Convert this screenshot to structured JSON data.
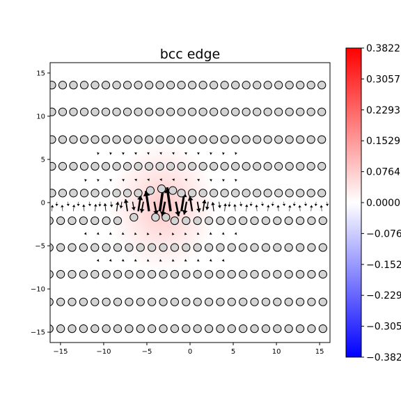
{
  "chart_data": {
    "type": "quiver-scatter",
    "title": "bcc edge",
    "xlabel": "",
    "ylabel": "",
    "xlim": [
      -16.2,
      16.2
    ],
    "ylim": [
      -16.2,
      16.2
    ],
    "xticks": [
      -15,
      -10,
      -5,
      0,
      5,
      10,
      15
    ],
    "yticks": [
      -15,
      -10,
      -5,
      0,
      5,
      10,
      15
    ],
    "atoms": {
      "color": "#d3d3d3",
      "edgecolor": "#000000",
      "upper_rows": [
        1.1,
        4.2,
        7.3,
        10.5,
        13.6
      ],
      "upper_x_start": -16.0,
      "upper_spacing": 1.25,
      "upper_count": 26,
      "lower_rows": [
        -2.1,
        -5.2,
        -8.3,
        -11.5,
        -14.6
      ],
      "lower_x_start": -16.3,
      "lower_spacing": 1.32,
      "lower_count": 25,
      "core_row_atoms": [
        [
          -6.5,
          -1.7
        ],
        [
          -4.0,
          -1.7
        ],
        [
          -2.8,
          -1.7
        ]
      ],
      "core_raised_atoms": [
        [
          -4.6,
          1.4
        ],
        [
          -3.3,
          1.6
        ],
        [
          -2.0,
          1.4
        ]
      ]
    },
    "displacement_field": {
      "rows": [
        0.0,
        -1.0
      ],
      "core_center_x": -3.0,
      "max_magnitude": 0.38
    },
    "heatmap": {
      "center": [
        -3.2,
        -0.5
      ],
      "sigma_x": 3.2,
      "sigma_y": 3.8,
      "peak_value": 0.08
    },
    "colorbar": {
      "cmap": "bwr",
      "vmin": -0.3822,
      "vmax": 0.3822,
      "ticks": [
        "0.3822",
        "0.3057",
        "0.2293",
        "0.1529",
        "0.0764",
        "0.0000",
        "-0.0764",
        "-0.1529",
        "-0.2293",
        "-0.3057",
        "-0.3822"
      ],
      "colors": {
        "max": "#ff0000",
        "mid": "#ffffff",
        "min": "#0000ff"
      }
    }
  }
}
